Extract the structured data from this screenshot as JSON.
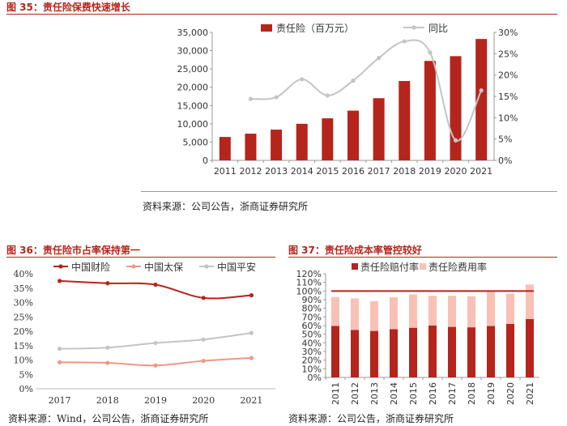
{
  "figures": {
    "fig35": {
      "title": "图  35：责任险保费快速增长",
      "source": "资料来源：公司公告，浙商证券研究所"
    },
    "fig36": {
      "title": "图  36：责任险市占率保持第一",
      "source": "资料来源：Wind，公司公告，浙商证券研究所"
    },
    "fig37": {
      "title": "图  37：责任险成本率管控较好",
      "source": "资料来源：公司公告，浙商证券研究所"
    }
  },
  "colors": {
    "title_red": "#b5251b",
    "bar_red": "#b5251b",
    "bar_pink": "#f9c0b6",
    "line_grey": "#c4c4c4",
    "line_salmon": "#f19785",
    "line_darkred": "#b5251b"
  },
  "chart_data": [
    {
      "id": "fig35",
      "type": "bar",
      "title": "责任险保费快速增长",
      "categories": [
        "2011",
        "2012",
        "2013",
        "2014",
        "2015",
        "2016",
        "2017",
        "2018",
        "2019",
        "2020",
        "2021"
      ],
      "series": [
        {
          "name": "责任险（百万元）",
          "kind": "bar",
          "axis": "left",
          "values": [
            6400,
            7300,
            8400,
            10000,
            11500,
            13600,
            17000,
            21700,
            27200,
            28500,
            33200
          ]
        },
        {
          "name": "同比",
          "kind": "line",
          "axis": "right",
          "values": [
            null,
            14.4,
            14.8,
            19.0,
            15.2,
            18.7,
            24.0,
            27.9,
            25.3,
            4.7,
            16.4
          ]
        }
      ],
      "ylim": [
        0,
        35000
      ],
      "yticks": [
        "0",
        "5,000",
        "10,000",
        "15,000",
        "20,000",
        "25,000",
        "30,000",
        "35,000"
      ],
      "y2lim": [
        0,
        30
      ],
      "y2ticks": [
        "0%",
        "5%",
        "10%",
        "15%",
        "20%",
        "25%",
        "30%"
      ],
      "legend": "top"
    },
    {
      "id": "fig36",
      "type": "line",
      "title": "责任险市占率保持第一",
      "categories": [
        "2017",
        "2018",
        "2019",
        "2020",
        "2021"
      ],
      "series": [
        {
          "name": "中国财险",
          "values": [
            37.5,
            36.7,
            36.2,
            31.6,
            32.5
          ]
        },
        {
          "name": "中国太保",
          "values": [
            9.2,
            9.0,
            8.1,
            9.7,
            10.7
          ]
        },
        {
          "name": "中国平安",
          "values": [
            13.9,
            14.3,
            15.9,
            17.1,
            19.4
          ]
        }
      ],
      "ylim": [
        0,
        40
      ],
      "yticks": [
        "0%",
        "5%",
        "10%",
        "15%",
        "20%",
        "25%",
        "30%",
        "35%",
        "40%"
      ],
      "legend": "top"
    },
    {
      "id": "fig37",
      "type": "bar",
      "stacked": true,
      "title": "责任险成本率管控较好",
      "categories": [
        "2011",
        "2012",
        "2013",
        "2014",
        "2015",
        "2016",
        "2017",
        "2018",
        "2019",
        "2020",
        "2021"
      ],
      "series": [
        {
          "name": "责任险赔付率",
          "values": [
            59.5,
            55.0,
            53.8,
            55.8,
            57.5,
            60.0,
            58.5,
            58.0,
            59.5,
            62.0,
            67.5
          ]
        },
        {
          "name": "责任险费用率",
          "values": [
            33.5,
            36.5,
            34.5,
            37.0,
            38.5,
            34.5,
            36.0,
            36.0,
            39.5,
            35.0,
            40.0
          ]
        }
      ],
      "reference_line": 100,
      "ylim": [
        0,
        120
      ],
      "yticks": [
        "0%",
        "10%",
        "20%",
        "30%",
        "40%",
        "50%",
        "60%",
        "70%",
        "80%",
        "90%",
        "100%",
        "110%",
        "120%"
      ],
      "legend": "top"
    }
  ]
}
